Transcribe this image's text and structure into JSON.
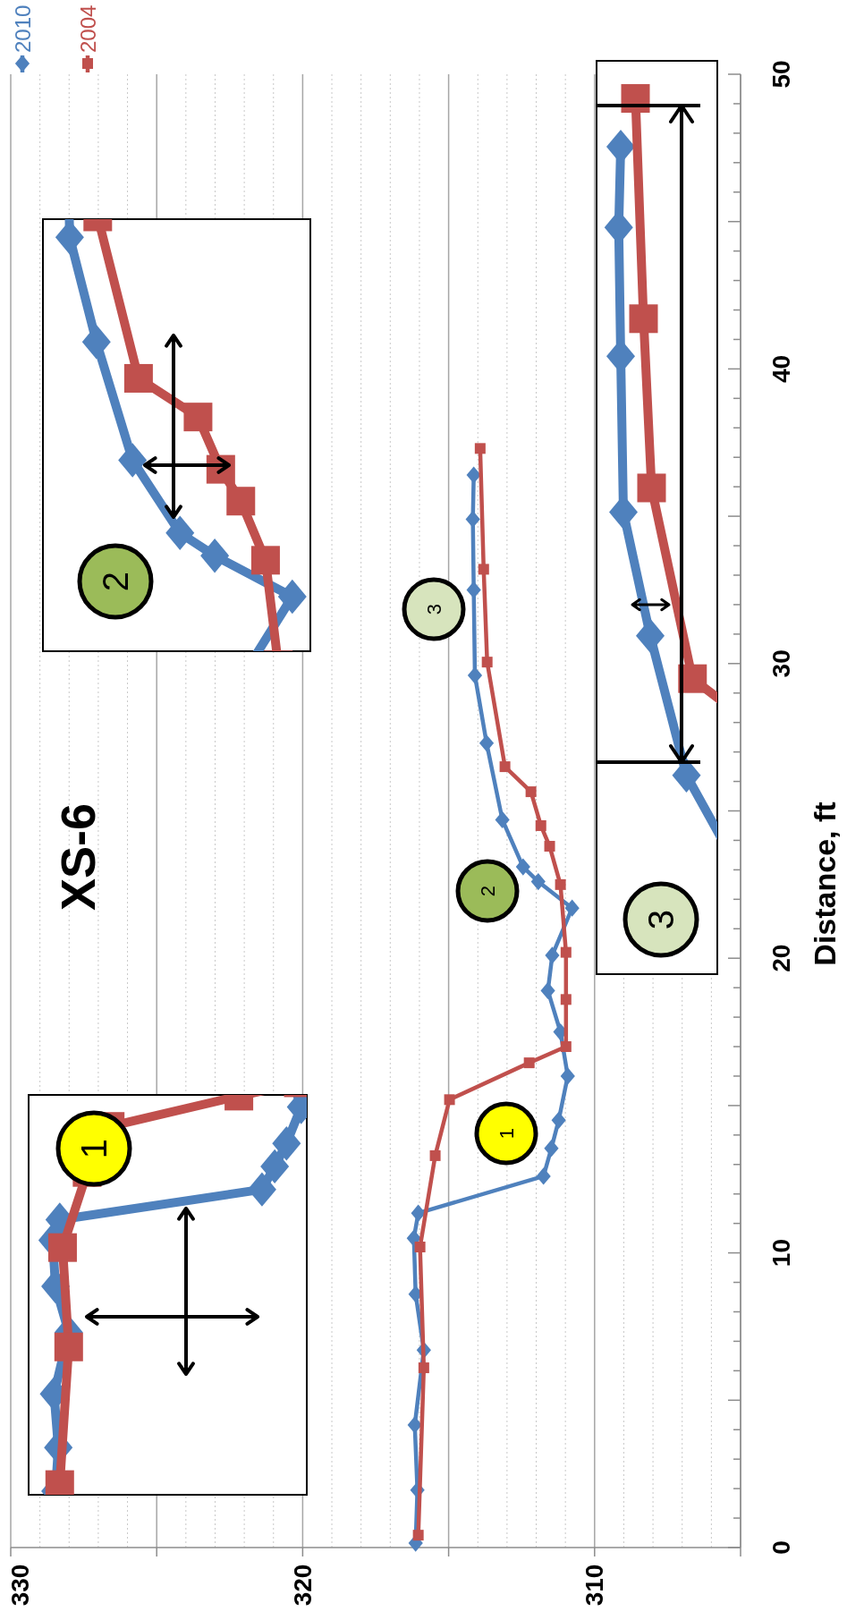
{
  "chart_data": {
    "type": "line",
    "title": "XS-6",
    "ylabel": "Distance, ft",
    "xlim": [
      330,
      305
    ],
    "ylim": [
      0,
      50
    ],
    "yticks": [
      0,
      {
        "value": 1,
        "label": null
      },
      {
        "value": 2,
        "label": null
      },
      {
        "value": 3,
        "label": null
      },
      {
        "value": 4,
        "label": null
      },
      {
        "value": 5,
        "label": null
      },
      {
        "value": 6,
        "label": null
      },
      {
        "value": 7,
        "label": null
      },
      {
        "value": 8,
        "label": null
      },
      {
        "value": 9,
        "label": null
      },
      10,
      {
        "value": 11,
        "label": null
      },
      {
        "value": 12,
        "label": null
      },
      {
        "value": 13,
        "label": null
      },
      {
        "value": 14,
        "label": null
      },
      {
        "value": 15,
        "label": null
      },
      {
        "value": 16,
        "label": null
      },
      {
        "value": 17,
        "label": null
      },
      {
        "value": 18,
        "label": null
      },
      {
        "value": 19,
        "label": null
      },
      20,
      {
        "value": 21,
        "label": null
      },
      {
        "value": 22,
        "label": null
      },
      {
        "value": 23,
        "label": null
      },
      {
        "value": 24,
        "label": null
      },
      {
        "value": 25,
        "label": null
      },
      {
        "value": 26,
        "label": null
      },
      {
        "value": 27,
        "label": null
      },
      {
        "value": 28,
        "label": null
      },
      {
        "value": 29,
        "label": null
      },
      30,
      {
        "value": 31,
        "label": null
      },
      {
        "value": 32,
        "label": null
      },
      {
        "value": 33,
        "label": null
      },
      {
        "value": 34,
        "label": null
      },
      {
        "value": 35,
        "label": null
      },
      {
        "value": 36,
        "label": null
      },
      {
        "value": 37,
        "label": null
      },
      {
        "value": 38,
        "label": null
      },
      {
        "value": 39,
        "label": null
      },
      40,
      {
        "value": 41,
        "label": null
      },
      {
        "value": 42,
        "label": null
      },
      {
        "value": 43,
        "label": null
      },
      {
        "value": 44,
        "label": null
      },
      {
        "value": 45,
        "label": null
      },
      {
        "value": 46,
        "label": null
      },
      {
        "value": 47,
        "label": null
      },
      {
        "value": 48,
        "label": null
      },
      {
        "value": 49,
        "label": null
      },
      50
    ],
    "xticks": [
      330,
      {
        "value": 329,
        "label": null
      },
      {
        "value": 328,
        "label": null
      },
      {
        "value": 327,
        "label": null
      },
      {
        "value": 326,
        "label": null
      },
      {
        "value": 325,
        "label": null
      },
      {
        "value": 324,
        "label": null
      },
      {
        "value": 323,
        "label": null
      },
      {
        "value": 322,
        "label": null
      },
      {
        "value": 321,
        "label": null
      },
      320,
      {
        "value": 319,
        "label": null
      },
      {
        "value": 318,
        "label": null
      },
      {
        "value": 317,
        "label": null
      },
      {
        "value": 316,
        "label": null
      },
      {
        "value": 315,
        "label": null
      },
      {
        "value": 314,
        "label": null
      },
      {
        "value": 313,
        "label": null
      },
      {
        "value": 312,
        "label": null
      },
      {
        "value": 311,
        "label": null
      },
      310,
      {
        "value": 309,
        "label": null
      },
      {
        "value": 308,
        "label": null
      },
      {
        "value": 307,
        "label": null
      },
      {
        "value": 306,
        "label": null
      },
      {
        "value": 305,
        "label": null
      }
    ],
    "grid": "x",
    "legend": "top left",
    "line_style": "solid",
    "series": [
      {
        "name": "2010",
        "color": "#4f81bd",
        "marker": "diamond",
        "values": [
          0.15,
          1.95,
          4.16,
          6.7,
          8.6,
          10.5,
          11.35,
          12.6,
          13.55,
          14.5,
          16.0,
          17.5,
          18.9,
          20.1,
          21.7,
          22.6,
          23.1,
          24.7,
          27.3,
          29.6,
          32.5,
          34.9,
          36.4
        ],
        "x": [
          316.13,
          316.07,
          316.16,
          315.85,
          316.13,
          316.19,
          316.04,
          311.75,
          311.48,
          311.23,
          310.92,
          311.17,
          311.6,
          311.45,
          310.77,
          311.93,
          312.45,
          313.16,
          313.7,
          314.1,
          314.14,
          314.17,
          314.14
        ]
      },
      {
        "name": "2004",
        "color": "#c0504d",
        "marker": "square",
        "values": [
          0.42,
          6.1,
          10.2,
          13.3,
          15.2,
          16.45,
          17.0,
          18.6,
          20.2,
          22.5,
          23.8,
          24.5,
          25.65,
          26.5,
          30.05,
          33.2,
          37.3
        ],
        "x": [
          316.04,
          315.85,
          315.98,
          315.46,
          314.97,
          312.24,
          310.98,
          310.98,
          310.98,
          311.17,
          311.54,
          311.84,
          312.18,
          313.07,
          313.68,
          313.8,
          313.92
        ]
      }
    ],
    "annotations": [
      "1",
      "2",
      "3",
      "1",
      "2",
      "3"
    ]
  }
}
